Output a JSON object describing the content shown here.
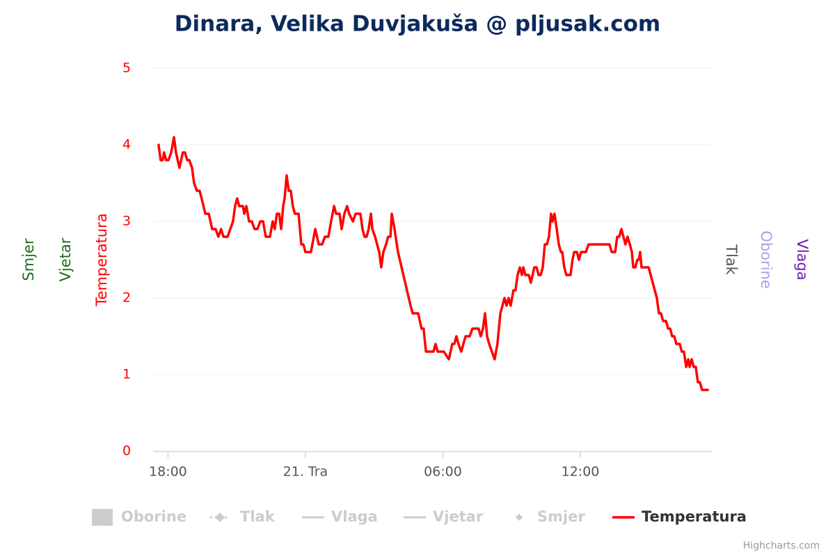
{
  "chart_data": {
    "type": "line",
    "title": "Dinara, Velika Duvjakuša @ pljusak.com",
    "y_title": "Temperatura",
    "y_color": "#ff0000",
    "extra_axes": [
      {
        "title": "Smjer",
        "color": "#1e6b1e",
        "side": "left"
      },
      {
        "title": "Vjetar",
        "color": "#1e6b1e",
        "side": "left"
      },
      {
        "title": "Tlak",
        "color": "#555555",
        "side": "right"
      },
      {
        "title": "Oborine",
        "color": "#a3a3ec",
        "side": "right"
      },
      {
        "title": "Vlaga",
        "color": "#6a1bb5",
        "side": "right"
      }
    ],
    "hidden_series": [
      {
        "name": "Oborine",
        "symbol": "column"
      },
      {
        "name": "Tlak",
        "symbol": "dash-diamond"
      },
      {
        "name": "Vlaga",
        "symbol": "line"
      },
      {
        "name": "Vjetar",
        "symbol": "line"
      },
      {
        "name": "Smjer",
        "symbol": "diamond"
      }
    ],
    "credits": "Highcharts.com",
    "xlim": [
      -6.65,
      17.74
    ],
    "xticks": [
      {
        "value": -6,
        "label": "18:00"
      },
      {
        "value": 0,
        "label": "21. Tra"
      },
      {
        "value": 6,
        "label": "06:00"
      },
      {
        "value": 12,
        "label": "12:00"
      }
    ],
    "ylim": [
      0,
      5
    ],
    "yticks": [
      0,
      1,
      2,
      3,
      4,
      5
    ],
    "grid": true,
    "x": [
      -6.41,
      -6.32,
      -6.23,
      -6.17,
      -6.08,
      -5.98,
      -5.86,
      -5.74,
      -5.65,
      -5.5,
      -5.35,
      -5.26,
      -5.16,
      -5.07,
      -4.95,
      -4.86,
      -4.74,
      -4.62,
      -4.53,
      -4.37,
      -4.22,
      -4.07,
      -3.92,
      -3.8,
      -3.68,
      -3.58,
      -3.4,
      -3.28,
      -3.16,
      -3.07,
      -2.98,
      -2.89,
      -2.73,
      -2.67,
      -2.58,
      -2.46,
      -2.34,
      -2.22,
      -2.1,
      -1.97,
      -1.85,
      -1.73,
      -1.55,
      -1.43,
      -1.34,
      -1.25,
      -1.15,
      -1.06,
      -0.97,
      -0.91,
      -0.82,
      -0.73,
      -0.64,
      -0.55,
      -0.46,
      -0.3,
      -0.18,
      -0.09,
      0,
      0.24,
      0.43,
      0.58,
      0.73,
      0.85,
      1.0,
      1.12,
      1.25,
      1.34,
      1.49,
      1.58,
      1.7,
      1.82,
      1.91,
      2.07,
      2.19,
      2.4,
      2.49,
      2.58,
      2.67,
      2.76,
      2.86,
      2.92,
      3.04,
      3.22,
      3.31,
      3.4,
      3.52,
      3.61,
      3.71,
      3.77,
      3.89,
      4.04,
      4.59,
      4.68,
      4.92,
      5.07,
      5.16,
      5.26,
      5.59,
      5.68,
      5.77,
      6.04,
      6.26,
      6.41,
      6.5,
      6.59,
      6.68,
      6.8,
      6.99,
      7.17,
      7.29,
      7.56,
      7.65,
      7.75,
      7.84,
      7.93,
      8.02,
      8.14,
      8.26,
      8.38,
      8.51,
      8.6,
      8.69,
      8.78,
      8.87,
      8.96,
      9.08,
      9.17,
      9.26,
      9.36,
      9.45,
      9.51,
      9.6,
      9.75,
      9.84,
      9.99,
      10.09,
      10.18,
      10.27,
      10.36,
      10.45,
      10.54,
      10.63,
      10.72,
      10.78,
      10.87,
      10.97,
      11.06,
      11.15,
      11.21,
      11.3,
      11.39,
      11.57,
      11.66,
      11.73,
      11.85,
      11.94,
      12.03,
      12.24,
      12.36,
      13.27,
      13.37,
      13.52,
      13.61,
      13.7,
      13.79,
      13.88,
      13.97,
      14.06,
      14.16,
      14.25,
      14.31,
      14.4,
      14.49,
      14.55,
      14.61,
      14.67,
      14.98,
      15.25,
      15.34,
      15.43,
      15.52,
      15.61,
      15.74,
      15.83,
      15.92,
      16.01,
      16.1,
      16.19,
      16.34,
      16.43,
      16.52,
      16.62,
      16.71,
      16.77,
      16.86,
      16.95,
      17.04,
      17.13,
      17.22,
      17.31,
      17.56
    ],
    "series": [
      {
        "name": "Temperatura",
        "color": "#ff0000",
        "values": [
          4.0,
          3.8,
          3.8,
          3.9,
          3.8,
          3.8,
          3.9,
          4.1,
          3.9,
          3.7,
          3.9,
          3.9,
          3.8,
          3.8,
          3.7,
          3.5,
          3.4,
          3.4,
          3.3,
          3.1,
          3.1,
          2.9,
          2.9,
          2.8,
          2.9,
          2.8,
          2.8,
          2.9,
          3.0,
          3.2,
          3.3,
          3.2,
          3.2,
          3.1,
          3.2,
          3.0,
          3.0,
          2.9,
          2.9,
          3.0,
          3.0,
          2.8,
          2.8,
          3.0,
          2.9,
          3.1,
          3.1,
          2.9,
          3.2,
          3.3,
          3.6,
          3.4,
          3.4,
          3.2,
          3.1,
          3.1,
          2.7,
          2.7,
          2.6,
          2.6,
          2.9,
          2.7,
          2.7,
          2.8,
          2.8,
          3.0,
          3.2,
          3.1,
          3.1,
          2.9,
          3.1,
          3.2,
          3.1,
          3.0,
          3.1,
          3.1,
          2.9,
          2.8,
          2.8,
          2.9,
          3.1,
          2.9,
          2.8,
          2.6,
          2.4,
          2.6,
          2.7,
          2.8,
          2.8,
          3.1,
          2.9,
          2.6,
          1.9,
          1.8,
          1.8,
          1.6,
          1.6,
          1.3,
          1.3,
          1.4,
          1.3,
          1.3,
          1.2,
          1.4,
          1.4,
          1.5,
          1.4,
          1.3,
          1.5,
          1.5,
          1.6,
          1.6,
          1.5,
          1.6,
          1.8,
          1.5,
          1.4,
          1.3,
          1.2,
          1.4,
          1.8,
          1.9,
          2.0,
          1.9,
          2.0,
          1.9,
          2.1,
          2.1,
          2.3,
          2.4,
          2.3,
          2.4,
          2.3,
          2.3,
          2.2,
          2.4,
          2.4,
          2.3,
          2.3,
          2.4,
          2.7,
          2.7,
          2.8,
          3.1,
          3.0,
          3.1,
          2.9,
          2.7,
          2.6,
          2.6,
          2.4,
          2.3,
          2.3,
          2.5,
          2.6,
          2.6,
          2.5,
          2.6,
          2.6,
          2.7,
          2.7,
          2.6,
          2.6,
          2.8,
          2.8,
          2.9,
          2.8,
          2.7,
          2.8,
          2.7,
          2.6,
          2.4,
          2.4,
          2.5,
          2.5,
          2.6,
          2.4,
          2.4,
          2.1,
          2.0,
          1.8,
          1.8,
          1.7,
          1.7,
          1.6,
          1.6,
          1.5,
          1.5,
          1.4,
          1.4,
          1.3,
          1.3,
          1.1,
          1.2,
          1.1,
          1.2,
          1.1,
          1.1,
          0.9,
          0.9,
          0.8,
          0.8
        ]
      }
    ]
  }
}
